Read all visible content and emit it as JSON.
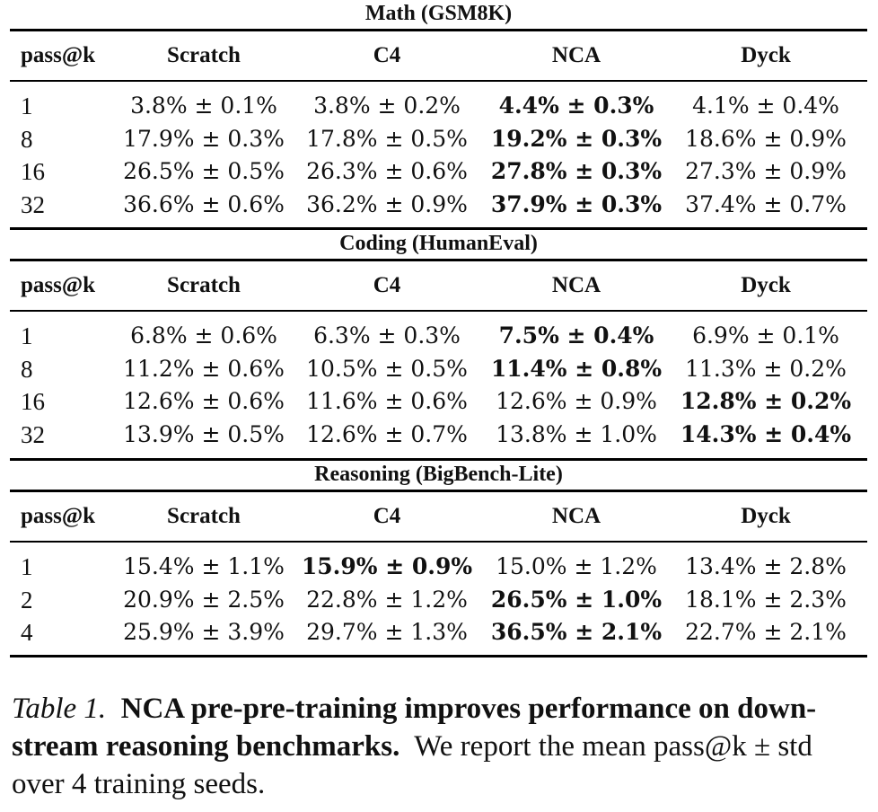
{
  "columns": [
    "pass@k",
    "Scratch",
    "C4",
    "NCA",
    "Dyck"
  ],
  "sections": [
    {
      "title": "Math (GSM8K)",
      "rows": [
        {
          "k": "1",
          "values": [
            "3.8% ± 0.1%",
            "3.8% ± 0.2%",
            "4.4% ± 0.3%",
            "4.1% ± 0.4%"
          ],
          "best": 2
        },
        {
          "k": "8",
          "values": [
            "17.9% ± 0.3%",
            "17.8% ± 0.5%",
            "19.2% ± 0.3%",
            "18.6% ± 0.9%"
          ],
          "best": 2
        },
        {
          "k": "16",
          "values": [
            "26.5% ± 0.5%",
            "26.3% ± 0.6%",
            "27.8% ± 0.3%",
            "27.3% ± 0.9%"
          ],
          "best": 2
        },
        {
          "k": "32",
          "values": [
            "36.6% ± 0.6%",
            "36.2% ± 0.9%",
            "37.9% ± 0.3%",
            "37.4% ± 0.7%"
          ],
          "best": 2
        }
      ]
    },
    {
      "title": "Coding (HumanEval)",
      "rows": [
        {
          "k": "1",
          "values": [
            "6.8% ± 0.6%",
            "6.3% ± 0.3%",
            "7.5% ± 0.4%",
            "6.9% ± 0.1%"
          ],
          "best": 2
        },
        {
          "k": "8",
          "values": [
            "11.2% ± 0.6%",
            "10.5% ± 0.5%",
            "11.4% ± 0.8%",
            "11.3% ± 0.2%"
          ],
          "best": 2
        },
        {
          "k": "16",
          "values": [
            "12.6% ± 0.6%",
            "11.6% ± 0.6%",
            "12.6% ± 0.9%",
            "12.8% ± 0.2%"
          ],
          "best": 3
        },
        {
          "k": "32",
          "values": [
            "13.9% ± 0.5%",
            "12.6% ± 0.7%",
            "13.8% ± 1.0%",
            "14.3% ± 0.4%"
          ],
          "best": 3
        }
      ]
    },
    {
      "title": "Reasoning (BigBench-Lite)",
      "rows": [
        {
          "k": "1",
          "values": [
            "15.4% ± 1.1%",
            "15.9% ± 0.9%",
            "15.0% ± 1.2%",
            "13.4% ± 2.8%"
          ],
          "best": 1
        },
        {
          "k": "2",
          "values": [
            "20.9% ± 2.5%",
            "22.8% ± 1.2%",
            "26.5% ± 1.0%",
            "18.1% ± 2.3%"
          ],
          "best": 2
        },
        {
          "k": "4",
          "values": [
            "25.9% ± 3.9%",
            "29.7% ± 1.3%",
            "36.5% ± 2.1%",
            "22.7% ± 2.1%"
          ],
          "best": 2
        }
      ]
    }
  ],
  "caption": {
    "label": "Table 1.",
    "headline": "NCA pre-pre-training improves performance on down-stream reasoning benchmarks.",
    "body": "We report the mean pass@k ± std over 4 training seeds."
  }
}
